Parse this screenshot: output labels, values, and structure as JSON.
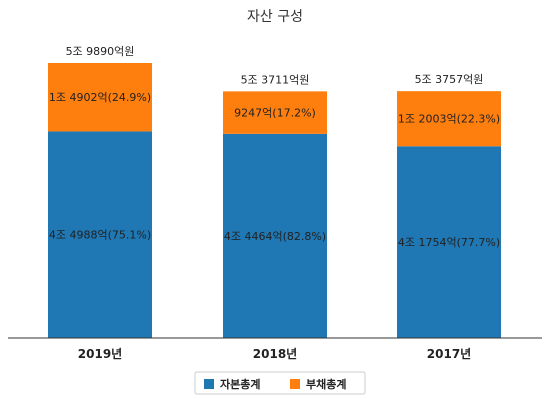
{
  "chart_data": {
    "type": "bar",
    "stacked": true,
    "title": "자산 구성",
    "categories": [
      "2019년",
      "2018년",
      "2017년"
    ],
    "totals": [
      59890,
      53711,
      53757
    ],
    "total_labels": [
      "5조 9890억원",
      "5조 3711억원",
      "5조 3757억원"
    ],
    "series": [
      {
        "name": "자본총계",
        "color": "#1f77b4",
        "values": [
          44988,
          44464,
          41754
        ],
        "labels": [
          "4조 4988억(75.1%)",
          "4조 4464억(82.8%)",
          "4조 1754억(77.7%)"
        ]
      },
      {
        "name": "부채총계",
        "color": "#ff7f0e",
        "values": [
          14902,
          9247,
          12003
        ],
        "labels": [
          "1조 4902억(24.9%)",
          "9247억(17.2%)",
          "1조 2003억(22.3%)"
        ]
      }
    ],
    "ylim": [
      0,
      59890
    ],
    "grid": false,
    "legend_position": "bottom-center"
  }
}
